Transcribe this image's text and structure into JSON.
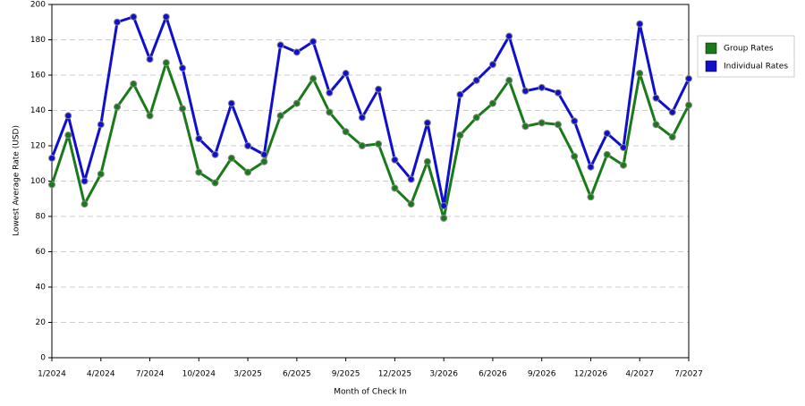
{
  "chart_data": {
    "type": "line",
    "x_label": "Month of Check In",
    "y_label": "Lowest Average Rate (USD)",
    "categories": [
      "1/2024",
      null,
      null,
      "4/2024",
      null,
      null,
      "7/2024",
      null,
      null,
      "10/2024",
      null,
      null,
      "3/2025",
      null,
      null,
      "6/2025",
      null,
      null,
      "9/2025",
      null,
      null,
      "12/2025",
      null,
      null,
      "3/2026",
      null,
      null,
      "6/2026",
      null,
      null,
      "9/2026",
      null,
      null,
      "12/2026",
      null,
      null,
      "4/2027",
      null,
      null,
      "7/2027"
    ],
    "series": [
      {
        "name": "Group Rates",
        "color": "#1a7a1a",
        "values": [
          98,
          126,
          87,
          104,
          142,
          155,
          137,
          167,
          141,
          105,
          99,
          113,
          105,
          111,
          137,
          144,
          158,
          139,
          128,
          120,
          121,
          96,
          87,
          111,
          79,
          126,
          136,
          144,
          157,
          131,
          133,
          132,
          114,
          91,
          115,
          109,
          161,
          132,
          125,
          143
        ]
      },
      {
        "name": "Individual Rates",
        "color": "#1010cc",
        "values": [
          113,
          137,
          100,
          132,
          190,
          193,
          169,
          193,
          164,
          124,
          115,
          144,
          120,
          115,
          177,
          173,
          179,
          150,
          161,
          136,
          152,
          112,
          101,
          133,
          86,
          149,
          157,
          166,
          182,
          151,
          153,
          150,
          134,
          108,
          127,
          119,
          189,
          147,
          139,
          158
        ]
      }
    ],
    "ylim": [
      0,
      200
    ],
    "yticks": [
      0,
      20,
      40,
      60,
      80,
      100,
      120,
      140,
      160,
      180,
      200
    ],
    "grid": true,
    "legend": "right"
  }
}
